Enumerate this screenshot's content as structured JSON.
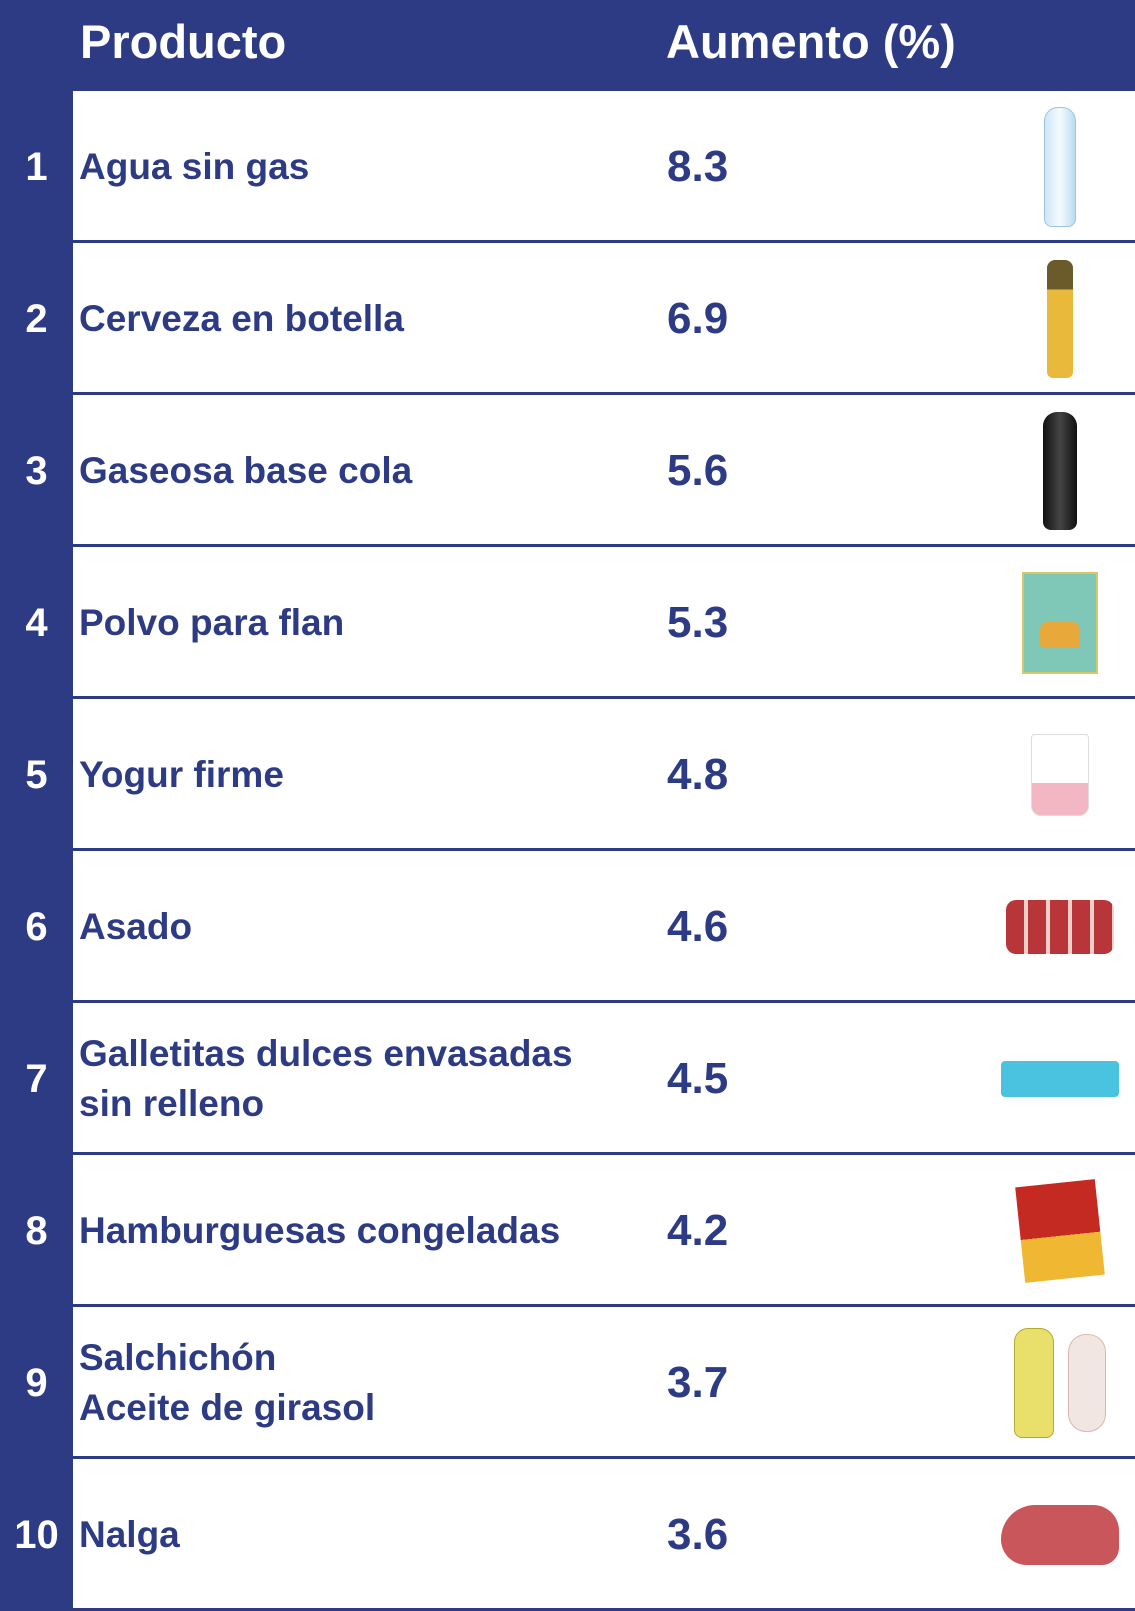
{
  "header": {
    "product": "Producto",
    "increase": "Aumento (%)"
  },
  "colors": {
    "primary": "#2d3b85",
    "background": "#ffffff"
  },
  "rows": [
    {
      "rank": "1",
      "product": "Agua sin gas",
      "increase": "8.3",
      "icon": "water-bottle-icon"
    },
    {
      "rank": "2",
      "product": "Cerveza en botella",
      "increase": "6.9",
      "icon": "beer-bottle-icon"
    },
    {
      "rank": "3",
      "product": "Gaseosa base cola",
      "increase": "5.6",
      "icon": "cola-bottle-icon"
    },
    {
      "rank": "4",
      "product": "Polvo para flan",
      "increase": "5.3",
      "icon": "flan-package-icon"
    },
    {
      "rank": "5",
      "product": "Yogur firme",
      "increase": "4.8",
      "icon": "yogurt-cup-icon"
    },
    {
      "rank": "6",
      "product": "Asado",
      "increase": "4.6",
      "icon": "ribs-meat-icon"
    },
    {
      "rank": "7",
      "product": "Galletitas dulces envasadas\nsin relleno",
      "increase": "4.5",
      "icon": "cookies-package-icon"
    },
    {
      "rank": "8",
      "product": "Hamburguesas congeladas",
      "increase": "4.2",
      "icon": "burger-box-icon"
    },
    {
      "rank": "9",
      "product": "Salchichón\nAceite de girasol",
      "increase": "3.7",
      "icon": "oil-and-sausage-icon"
    },
    {
      "rank": "10",
      "product": "Nalga",
      "increase": "3.6",
      "icon": "beef-cut-icon"
    }
  ]
}
